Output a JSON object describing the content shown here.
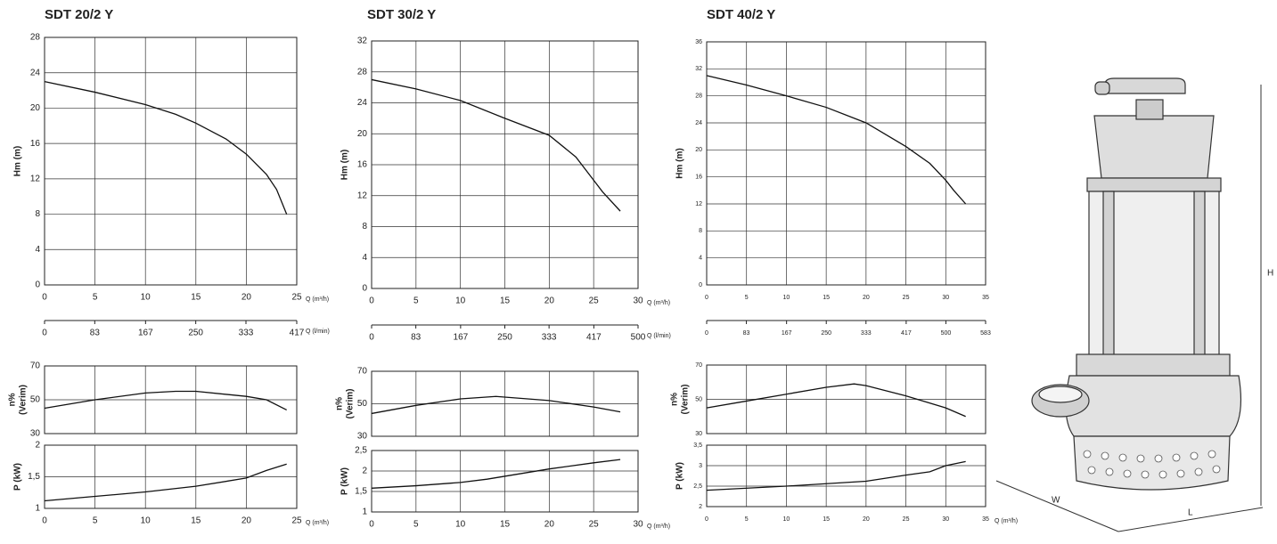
{
  "chart_data": [
    {
      "type": "line",
      "title": "SDT 20/2 Y",
      "ylabel": [
        "Hm (m)"
      ],
      "xlabel": "Q (m³/h)",
      "x2label": "Q (l/min)",
      "x": [
        0,
        5,
        10,
        13,
        15,
        18,
        20,
        22,
        23,
        24
      ],
      "values": [
        23,
        21.8,
        20.4,
        19.3,
        18.3,
        16.5,
        14.8,
        12.5,
        10.8,
        8
      ],
      "xlim": [
        0,
        25
      ],
      "xticks": [
        0,
        5,
        10,
        15,
        20,
        25
      ],
      "ylim": [
        0,
        28
      ],
      "yticks": [
        0,
        4,
        8,
        12,
        16,
        20,
        24,
        28
      ],
      "x2lim": [
        0,
        417
      ],
      "x2ticks": [
        0,
        83,
        167,
        250,
        333,
        417
      ],
      "grid": true,
      "color": "#111111"
    },
    {
      "type": "line",
      "ylabel": [
        "n%",
        "(Verim)"
      ],
      "x": [
        0,
        5,
        10,
        13,
        15,
        20,
        22,
        24
      ],
      "values": [
        45,
        50,
        54,
        55,
        55,
        52,
        50,
        44
      ],
      "xlim": [
        0,
        25
      ],
      "xticks": [
        0,
        5,
        10,
        15,
        20,
        25
      ],
      "show_xtick_labels": false,
      "ylim": [
        30,
        70
      ],
      "yticks": [
        30,
        50,
        70
      ],
      "grid": true,
      "color": "#111111"
    },
    {
      "type": "line",
      "ylabel": [
        "P (kW)"
      ],
      "xlabel": "Q (m³/h)",
      "x": [
        0,
        5,
        10,
        15,
        20,
        22,
        24
      ],
      "values": [
        1.12,
        1.19,
        1.26,
        1.35,
        1.48,
        1.6,
        1.7
      ],
      "xlim": [
        0,
        25
      ],
      "xticks": [
        0,
        5,
        10,
        15,
        20,
        25
      ],
      "ylim": [
        1,
        2
      ],
      "yticks": [
        1,
        {
          "value": 1.5,
          "label": "1,5"
        },
        2
      ],
      "grid": true,
      "color": "#111111"
    },
    {
      "type": "line",
      "title": "SDT 30/2 Y",
      "ylabel": [
        "Hm (m)"
      ],
      "xlabel": "Q (m³/h)",
      "x2label": "Q (l/min)",
      "x": [
        0,
        5,
        10,
        15,
        20,
        23,
        25,
        26,
        28
      ],
      "values": [
        27,
        25.8,
        24.3,
        22,
        19.8,
        17,
        14,
        12.5,
        10
      ],
      "xlim": [
        0,
        30
      ],
      "xticks": [
        0,
        5,
        10,
        15,
        20,
        25,
        30
      ],
      "ylim": [
        0,
        32
      ],
      "yticks": [
        0,
        4,
        8,
        12,
        16,
        20,
        24,
        28,
        32
      ],
      "x2lim": [
        0,
        500
      ],
      "x2ticks": [
        0,
        83,
        167,
        250,
        333,
        417,
        500
      ],
      "grid": true,
      "color": "#111111"
    },
    {
      "type": "line",
      "ylabel": [
        "n%",
        "(Verim)"
      ],
      "x": [
        0,
        5,
        10,
        14,
        20,
        25,
        28
      ],
      "values": [
        44,
        49,
        53,
        54.5,
        52,
        48,
        45
      ],
      "xlim": [
        0,
        30
      ],
      "xticks": [
        0,
        5,
        10,
        15,
        20,
        25,
        30
      ],
      "show_xtick_labels": false,
      "ylim": [
        30,
        70
      ],
      "yticks": [
        30,
        50,
        70
      ],
      "grid": true,
      "color": "#111111"
    },
    {
      "type": "line",
      "ylabel": [
        "P (kW)"
      ],
      "xlabel": "Q (m³/h)",
      "x": [
        0,
        5,
        10,
        13,
        20,
        25,
        28
      ],
      "values": [
        1.58,
        1.64,
        1.72,
        1.8,
        2.05,
        2.2,
        2.28
      ],
      "xlim": [
        0,
        30
      ],
      "xticks": [
        0,
        5,
        10,
        15,
        20,
        25,
        30
      ],
      "ylim": [
        1,
        2.5
      ],
      "yticks": [
        1,
        {
          "value": 1.5,
          "label": "1,5"
        },
        2,
        {
          "value": 2.5,
          "label": "2,5"
        }
      ],
      "grid": true,
      "color": "#111111"
    },
    {
      "type": "line",
      "title": "SDT 40/2 Y",
      "ylabel": [
        "Hm (m)"
      ],
      "x": [
        0,
        5,
        10,
        15,
        20,
        25,
        28,
        30,
        31,
        32.5
      ],
      "values": [
        31,
        29.6,
        28,
        26.3,
        24,
        20.5,
        18,
        15.5,
        14,
        12
      ],
      "xlim": [
        0,
        35
      ],
      "xticks": [
        0,
        5,
        10,
        15,
        20,
        25,
        30,
        35
      ],
      "ylim": [
        0,
        36
      ],
      "yticks": [
        0,
        4,
        8,
        12,
        16,
        20,
        24,
        28,
        32,
        36
      ],
      "x2lim": [
        0,
        583
      ],
      "x2ticks": [
        0,
        83,
        167,
        250,
        333,
        417,
        500,
        583
      ],
      "grid": true,
      "color": "#111111"
    },
    {
      "type": "line",
      "ylabel": [
        "n%",
        "(Verim)"
      ],
      "x": [
        0,
        5,
        10,
        15,
        18.5,
        20,
        25,
        30,
        32.5
      ],
      "values": [
        45,
        49,
        53,
        57,
        59,
        58,
        52,
        45,
        40
      ],
      "xlim": [
        0,
        35
      ],
      "xticks": [
        0,
        5,
        10,
        15,
        20,
        25,
        30,
        35
      ],
      "show_xtick_labels": false,
      "ylim": [
        30,
        70
      ],
      "yticks": [
        30,
        50,
        70
      ],
      "grid": true,
      "color": "#111111"
    },
    {
      "type": "line",
      "ylabel": [
        "P (kW)"
      ],
      "xlabel": "Q (m³/h)",
      "x": [
        0,
        10,
        20,
        25,
        28,
        30,
        32.5
      ],
      "values": [
        2.4,
        2.5,
        2.62,
        2.77,
        2.85,
        3.0,
        3.1
      ],
      "xlim": [
        0,
        35
      ],
      "xticks": [
        0,
        5,
        10,
        15,
        20,
        25,
        30,
        35
      ],
      "ylim": [
        2,
        3.5
      ],
      "yticks": [
        2,
        {
          "value": 2.5,
          "label": "2,5"
        },
        3,
        {
          "value": 3.5,
          "label": "3,5"
        }
      ],
      "grid": true,
      "color": "#111111"
    }
  ],
  "illustration": {
    "height_label": "H",
    "width_label": "W",
    "length_label": "L"
  }
}
